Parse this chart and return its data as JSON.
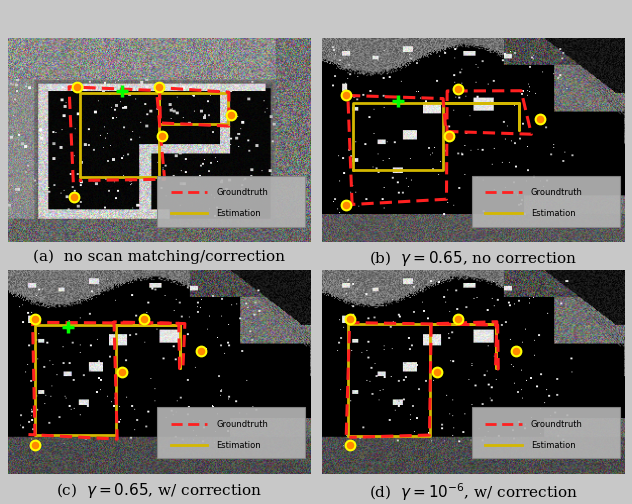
{
  "fig_bg": "#c8c8c8",
  "caption_fontsize": 11,
  "captions": [
    "(a)  no scan matching/correction",
    "(b)  $\\gamma = 0.65$, no correction",
    "(c)  $\\gamma = 0.65$, w/ correction",
    "(d)  $\\gamma = 10^{-6}$, w/ correction"
  ],
  "gt_color": "#ff2020",
  "est_color_yellow": "#d4b800",
  "est_color_gray": "#aaaaaa",
  "anchor_edge": "#ffff00",
  "anchor_face": "#ff8800",
  "start_color": "#00ff00",
  "legend_bg": "#b4b4b4",
  "legend_edge": "#888888"
}
